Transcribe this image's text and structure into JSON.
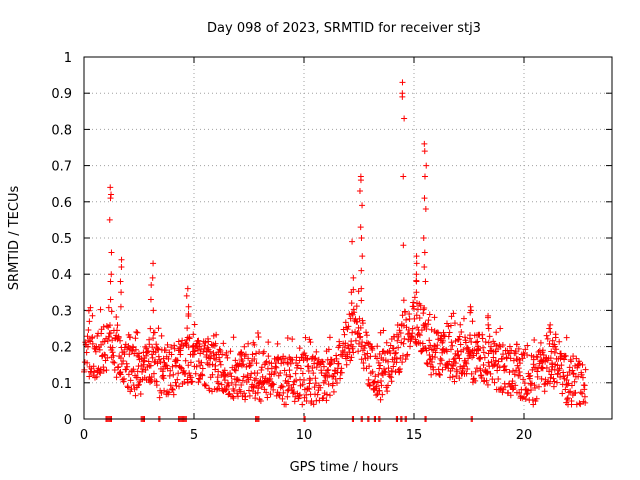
{
  "chart_data": {
    "type": "scatter",
    "title": "Day 098 of 2023, SRMTID for receiver stj3",
    "xlabel": "GPS time / hours",
    "ylabel": "SRMTID / TECUs",
    "xlim": [
      0,
      24
    ],
    "ylim": [
      0,
      1
    ],
    "x_ticks": [
      "0",
      "5",
      "10",
      "15",
      "20"
    ],
    "x_tick_values": [
      0,
      5,
      10,
      15,
      20
    ],
    "y_ticks": [
      "0",
      "0.1",
      "0.2",
      "0.3",
      "0.4",
      "0.5",
      "0.6",
      "0.7",
      "0.8",
      "0.9",
      "1"
    ],
    "y_tick_values": [
      0,
      0.1,
      0.2,
      0.3,
      0.4,
      0.5,
      0.6,
      0.7,
      0.8,
      0.9,
      1
    ],
    "grid": true,
    "marker": "+",
    "color": "#ff0000",
    "profile": [
      [
        0.0,
        0.2
      ],
      [
        0.5,
        0.17
      ],
      [
        1.0,
        0.2
      ],
      [
        1.5,
        0.18
      ],
      [
        2.0,
        0.14
      ],
      [
        2.5,
        0.13
      ],
      [
        3.0,
        0.17
      ],
      [
        3.5,
        0.12
      ],
      [
        4.0,
        0.13
      ],
      [
        4.5,
        0.15
      ],
      [
        5.0,
        0.17
      ],
      [
        5.5,
        0.15
      ],
      [
        6.0,
        0.14
      ],
      [
        6.5,
        0.13
      ],
      [
        7.0,
        0.12
      ],
      [
        7.5,
        0.11
      ],
      [
        8.0,
        0.12
      ],
      [
        8.5,
        0.11
      ],
      [
        9.0,
        0.1
      ],
      [
        9.5,
        0.1
      ],
      [
        10.0,
        0.11
      ],
      [
        10.5,
        0.1
      ],
      [
        11.0,
        0.11
      ],
      [
        11.5,
        0.14
      ],
      [
        12.0,
        0.22
      ],
      [
        12.5,
        0.26
      ],
      [
        13.0,
        0.14
      ],
      [
        13.5,
        0.12
      ],
      [
        14.0,
        0.16
      ],
      [
        14.5,
        0.22
      ],
      [
        15.0,
        0.28
      ],
      [
        15.5,
        0.22
      ],
      [
        16.0,
        0.17
      ],
      [
        16.5,
        0.18
      ],
      [
        17.0,
        0.17
      ],
      [
        17.5,
        0.17
      ],
      [
        18.0,
        0.17
      ],
      [
        18.5,
        0.16
      ],
      [
        19.0,
        0.14
      ],
      [
        19.5,
        0.13
      ],
      [
        20.0,
        0.12
      ],
      [
        20.5,
        0.1
      ],
      [
        21.0,
        0.15
      ],
      [
        21.5,
        0.16
      ],
      [
        22.0,
        0.1
      ],
      [
        22.8,
        0.1
      ]
    ],
    "highlights": [
      {
        "x": 1.2,
        "values": [
          0.64,
          0.62,
          0.61,
          0.55,
          0.46,
          0.4,
          0.38,
          0.33
        ]
      },
      {
        "x": 1.7,
        "values": [
          0.44,
          0.42,
          0.38,
          0.35,
          0.31
        ]
      },
      {
        "x": 3.1,
        "values": [
          0.43,
          0.39,
          0.37,
          0.33,
          0.3
        ]
      },
      {
        "x": 4.7,
        "values": [
          0.36,
          0.34,
          0.31,
          0.29
        ]
      },
      {
        "x": 12.2,
        "values": [
          0.49,
          0.39,
          0.35,
          0.32
        ]
      },
      {
        "x": 12.6,
        "values": [
          0.67,
          0.66,
          0.63,
          0.59,
          0.53,
          0.5,
          0.45,
          0.41,
          0.36
        ]
      },
      {
        "x": 14.5,
        "values": [
          0.93,
          0.9,
          0.89,
          0.83,
          0.67,
          0.48
        ]
      },
      {
        "x": 15.1,
        "values": [
          0.45,
          0.43,
          0.4,
          0.38,
          0.35,
          0.32
        ]
      },
      {
        "x": 15.5,
        "values": [
          0.76,
          0.74,
          0.7,
          0.67,
          0.61,
          0.58,
          0.5,
          0.46,
          0.42,
          0.38
        ]
      },
      {
        "x": 17.6,
        "values": [
          0.31,
          0.3,
          0.27
        ]
      },
      {
        "x": 18.4,
        "values": [
          0.28,
          0.26,
          0.25
        ]
      },
      {
        "x": 21.2,
        "values": [
          0.26,
          0.25,
          0.24
        ]
      }
    ],
    "zero_points": [
      1.0,
      1.1,
      1.2,
      2.6,
      2.7,
      3.4,
      4.3,
      4.4,
      4.5,
      4.6,
      7.8,
      7.9,
      10.0,
      12.2,
      12.6,
      12.9,
      13.2,
      13.4,
      14.2,
      14.4,
      14.6,
      15.5,
      17.6
    ]
  }
}
